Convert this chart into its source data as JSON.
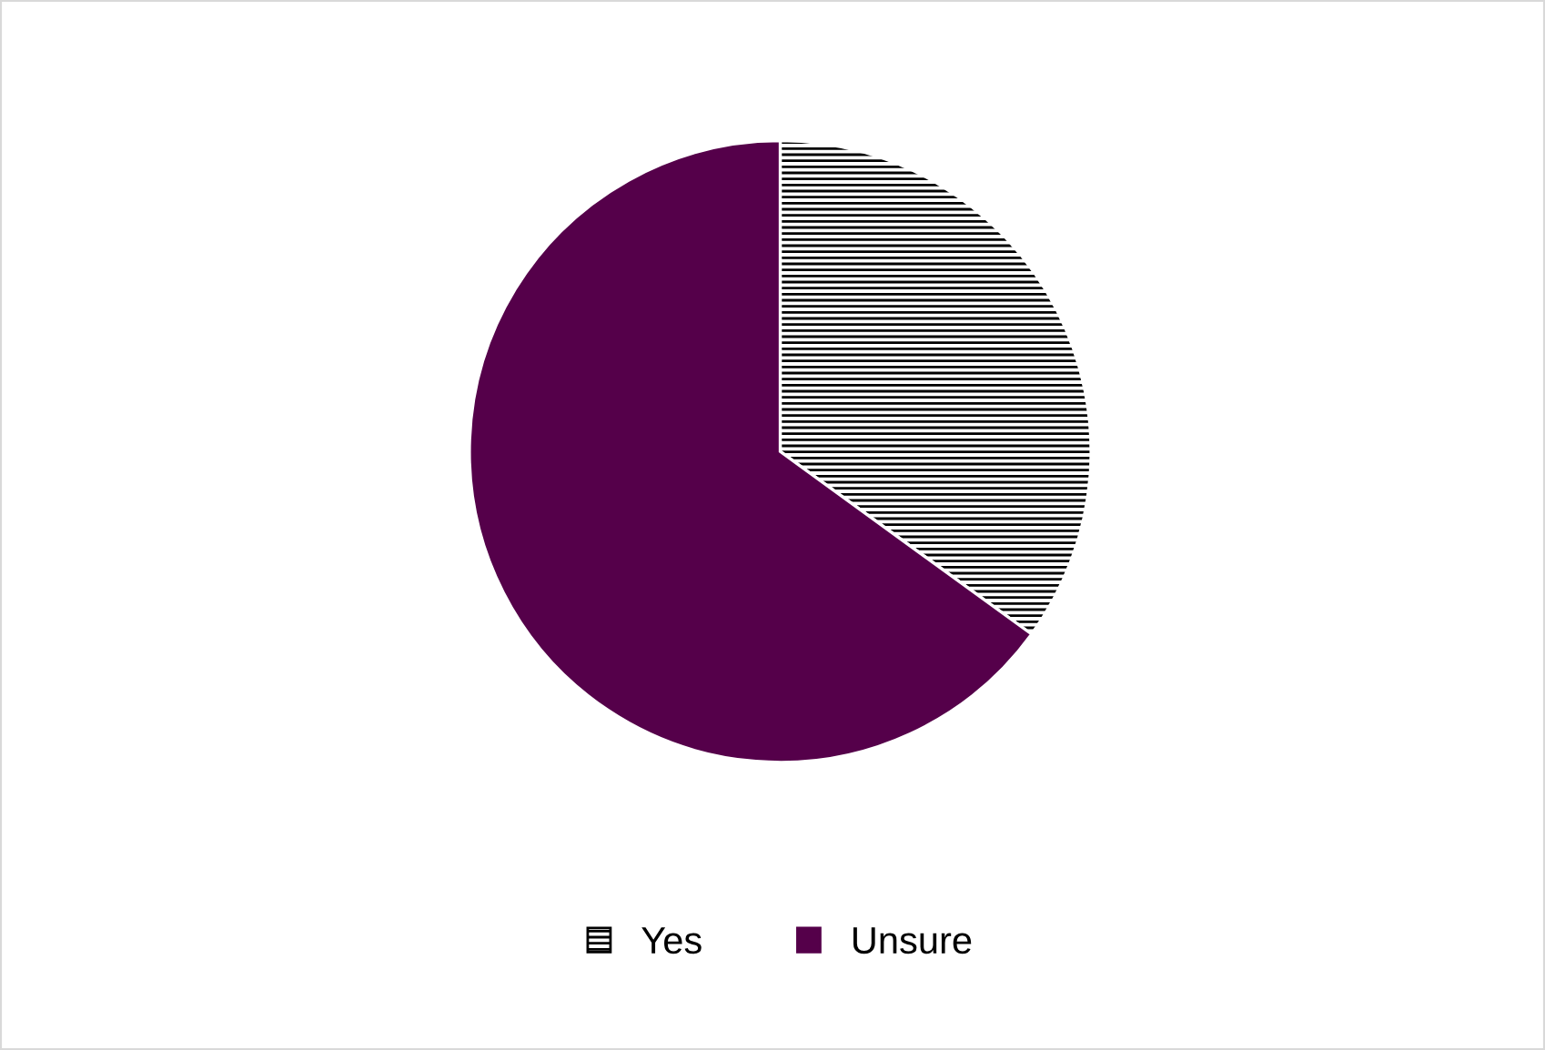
{
  "chart_data": {
    "type": "pie",
    "categories": [
      "Yes",
      "Unsure"
    ],
    "values": [
      35,
      65
    ],
    "colors": [
      "#ffffff",
      "#55004a"
    ],
    "legend": "bottom"
  }
}
